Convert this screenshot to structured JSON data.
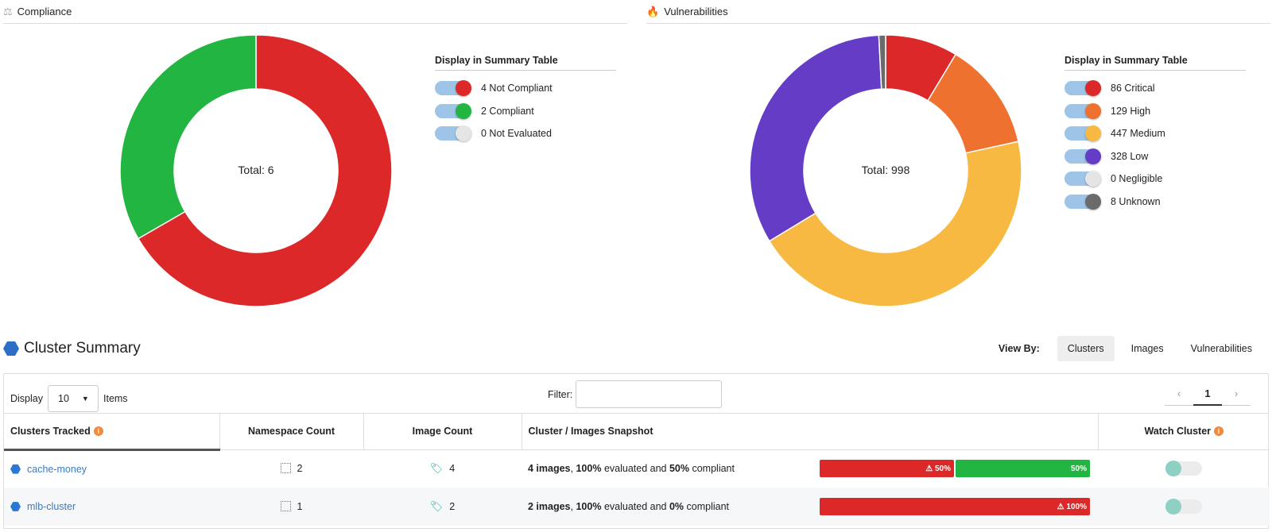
{
  "compliance": {
    "title": "Compliance",
    "icon": "scale-icon",
    "total_label": "Total: 6",
    "legend_title": "Display in Summary Table",
    "items": [
      {
        "label": "4 Not Compliant",
        "value": 4,
        "color": "#dc2828"
      },
      {
        "label": "2 Compliant",
        "value": 2,
        "color": "#22b541"
      },
      {
        "label": "0 Not Evaluated",
        "value": 0,
        "color": "#e5e5e5"
      }
    ]
  },
  "vulnerabilities": {
    "title": "Vulnerabilities",
    "icon": "flame-icon",
    "total_label": "Total: 998",
    "legend_title": "Display in Summary Table",
    "items": [
      {
        "label": "86 Critical",
        "value": 86,
        "color": "#dc2828"
      },
      {
        "label": "129 High",
        "value": 129,
        "color": "#ef7130"
      },
      {
        "label": "447 Medium",
        "value": 447,
        "color": "#f7b942"
      },
      {
        "label": "328 Low",
        "value": 328,
        "color": "#643cc6"
      },
      {
        "label": "0 Negligible",
        "value": 0,
        "color": "#e5e5e5"
      },
      {
        "label": "8 Unknown",
        "value": 8,
        "color": "#6b6b6b"
      }
    ]
  },
  "summary": {
    "title": "Cluster Summary",
    "view_by_label": "View By:",
    "view_by_options": [
      "Clusters",
      "Images",
      "Vulnerabilities"
    ],
    "view_by_selected": "Clusters"
  },
  "table": {
    "display_label": "Display",
    "display_value": "10",
    "items_label": "Items",
    "filter_label": "Filter:",
    "filter_value": "",
    "page_current": "1",
    "page_prev": "‹",
    "page_next": "›",
    "columns": [
      "Clusters Tracked",
      "Namespace Count",
      "Image Count",
      "Cluster / Images Snapshot",
      "Watch Cluster"
    ],
    "rows": [
      {
        "name": "cache-money",
        "namespaces": "2",
        "images": "4",
        "snap_images": "4 images",
        "snap_eval": "100%",
        "snap_comp": "50%",
        "bar": [
          {
            "label": "⚠ 50%",
            "value": 50,
            "kind": "red"
          },
          {
            "label": "50%",
            "value": 50,
            "kind": "green"
          }
        ]
      },
      {
        "name": "mlb-cluster",
        "namespaces": "1",
        "images": "2",
        "snap_images": "2 images",
        "snap_eval": "100%",
        "snap_comp": "0%",
        "bar": [
          {
            "label": "⚠ 100%",
            "value": 100,
            "kind": "red"
          }
        ]
      }
    ],
    "snap_text_mid": "evaluated and",
    "snap_text_end": "compliant"
  }
}
